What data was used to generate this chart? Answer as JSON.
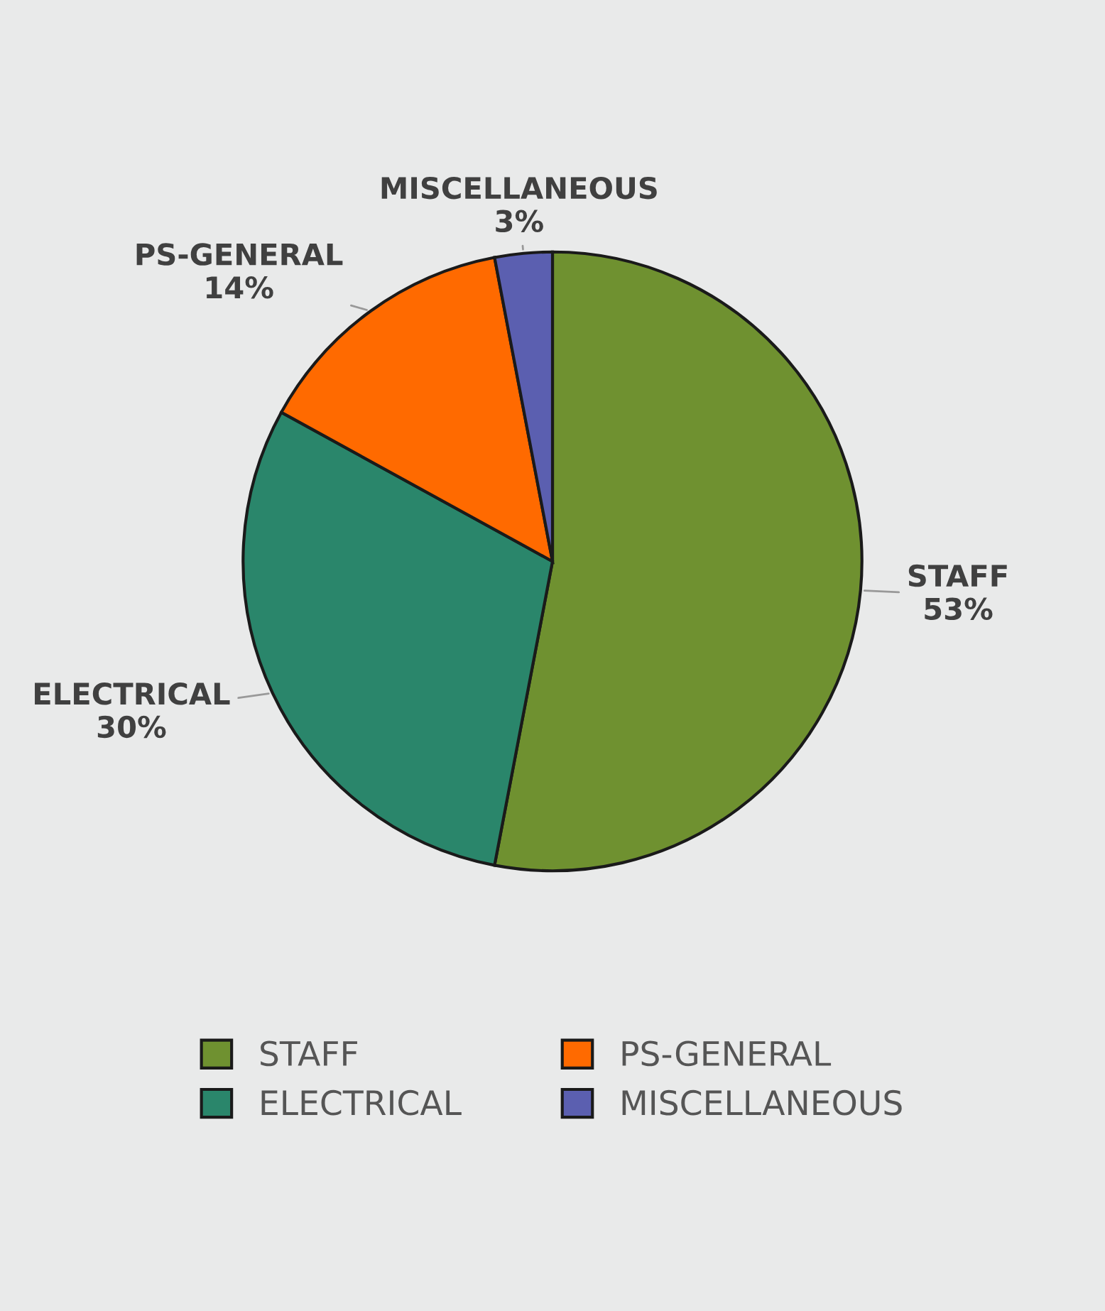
{
  "chart_data": {
    "type": "pie",
    "categories": [
      "STAFF",
      "ELECTRICAL",
      "PS-GENERAL",
      "MISCELLANEOUS"
    ],
    "values": [
      53,
      30,
      14,
      3
    ],
    "value_labels": [
      "53%",
      "30%",
      "14%",
      "3%"
    ],
    "colors": [
      "#6f9130",
      "#2a866b",
      "#ff6a00",
      "#5b5fb0"
    ],
    "legend": "bottom"
  }
}
